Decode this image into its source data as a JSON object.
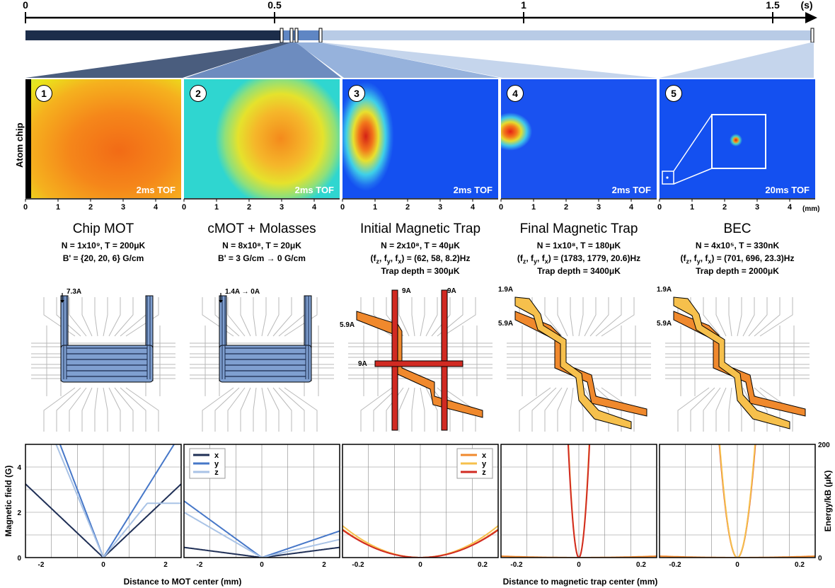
{
  "timeline": {
    "ticks": [
      "0",
      "0.5",
      "1",
      "1.5"
    ],
    "unit": "(s)"
  },
  "colors": {
    "timeline_dark": "#1c2d4a",
    "timeline_mid": "#5f86c4",
    "timeline_light": "#b8cbe6",
    "series_x_mot": "#1f2f56",
    "series_y_mot": "#4677c8",
    "series_z_mot": "#a9c3e6",
    "series_x_mag": "#f0892d",
    "series_y_mag": "#f6c04c",
    "series_z_mag": "#d12a22"
  },
  "side_label": "Atom chip",
  "panels": [
    {
      "num": "1",
      "tof": "2ms TOF"
    },
    {
      "num": "2",
      "tof": "2ms TOF"
    },
    {
      "num": "3",
      "tof": "2ms TOF"
    },
    {
      "num": "4",
      "tof": "2ms TOF"
    },
    {
      "num": "5",
      "tof": "20ms TOF"
    }
  ],
  "image_axis": {
    "ticks": [
      "0",
      "1",
      "2",
      "3",
      "4"
    ],
    "unit": "(mm)"
  },
  "stages": [
    {
      "title": "Chip MOT",
      "lines": [
        "N = 1x10⁹, T = 200μK",
        "B' = {20, 20, 6} G/cm"
      ]
    },
    {
      "title": "cMOT + Molasses",
      "lines": [
        "N = 8x10⁸, T = 20μK",
        "B' = 3 G/cm → 0 G/cm"
      ]
    },
    {
      "title": "Initial Magnetic Trap",
      "lines": [
        "N = 2x10⁸, T = 40μK",
        "(fz, fy, fx) = (62, 58, 8.2)Hz",
        "Trap depth = 300μK"
      ]
    },
    {
      "title": "Final Magnetic Trap",
      "lines": [
        "N = 1x10⁸, T = 180μK",
        "(fz, fy, fx) = (1783, 1779, 20.6)Hz",
        "Trap depth = 3400μK"
      ]
    },
    {
      "title": "BEC",
      "lines": [
        "N = 4x10⁵, T = 330nK",
        "(fz, fy, fx) = (701, 696, 23.3)Hz",
        "Trap depth = 2000μK"
      ]
    }
  ],
  "currents": {
    "c1": [
      "7.3A"
    ],
    "c2": [
      "1.4A → 0A"
    ],
    "c3": [
      "9A",
      "9A",
      "5.9A",
      "9A"
    ],
    "c4": [
      "1.9A",
      "5.9A"
    ],
    "c5": [
      "1.9A",
      "5.9A"
    ]
  },
  "plots": {
    "mot_xlabel": "Distance to MOT center (mm)",
    "mag_xlabel": "Distance to magnetic trap center (mm)",
    "ylabel_left": "Magnetic field (G)",
    "ylabel_right": "Energy/kB (μK)",
    "mot_xticks": [
      "-2",
      "0",
      "2"
    ],
    "mag_xticks": [
      "-0.2",
      "0",
      "0.2"
    ],
    "left_yticks": [
      "0",
      "2",
      "4"
    ],
    "right_yticks": [
      "0",
      "200"
    ],
    "legend": [
      "x",
      "y",
      "z"
    ]
  }
}
